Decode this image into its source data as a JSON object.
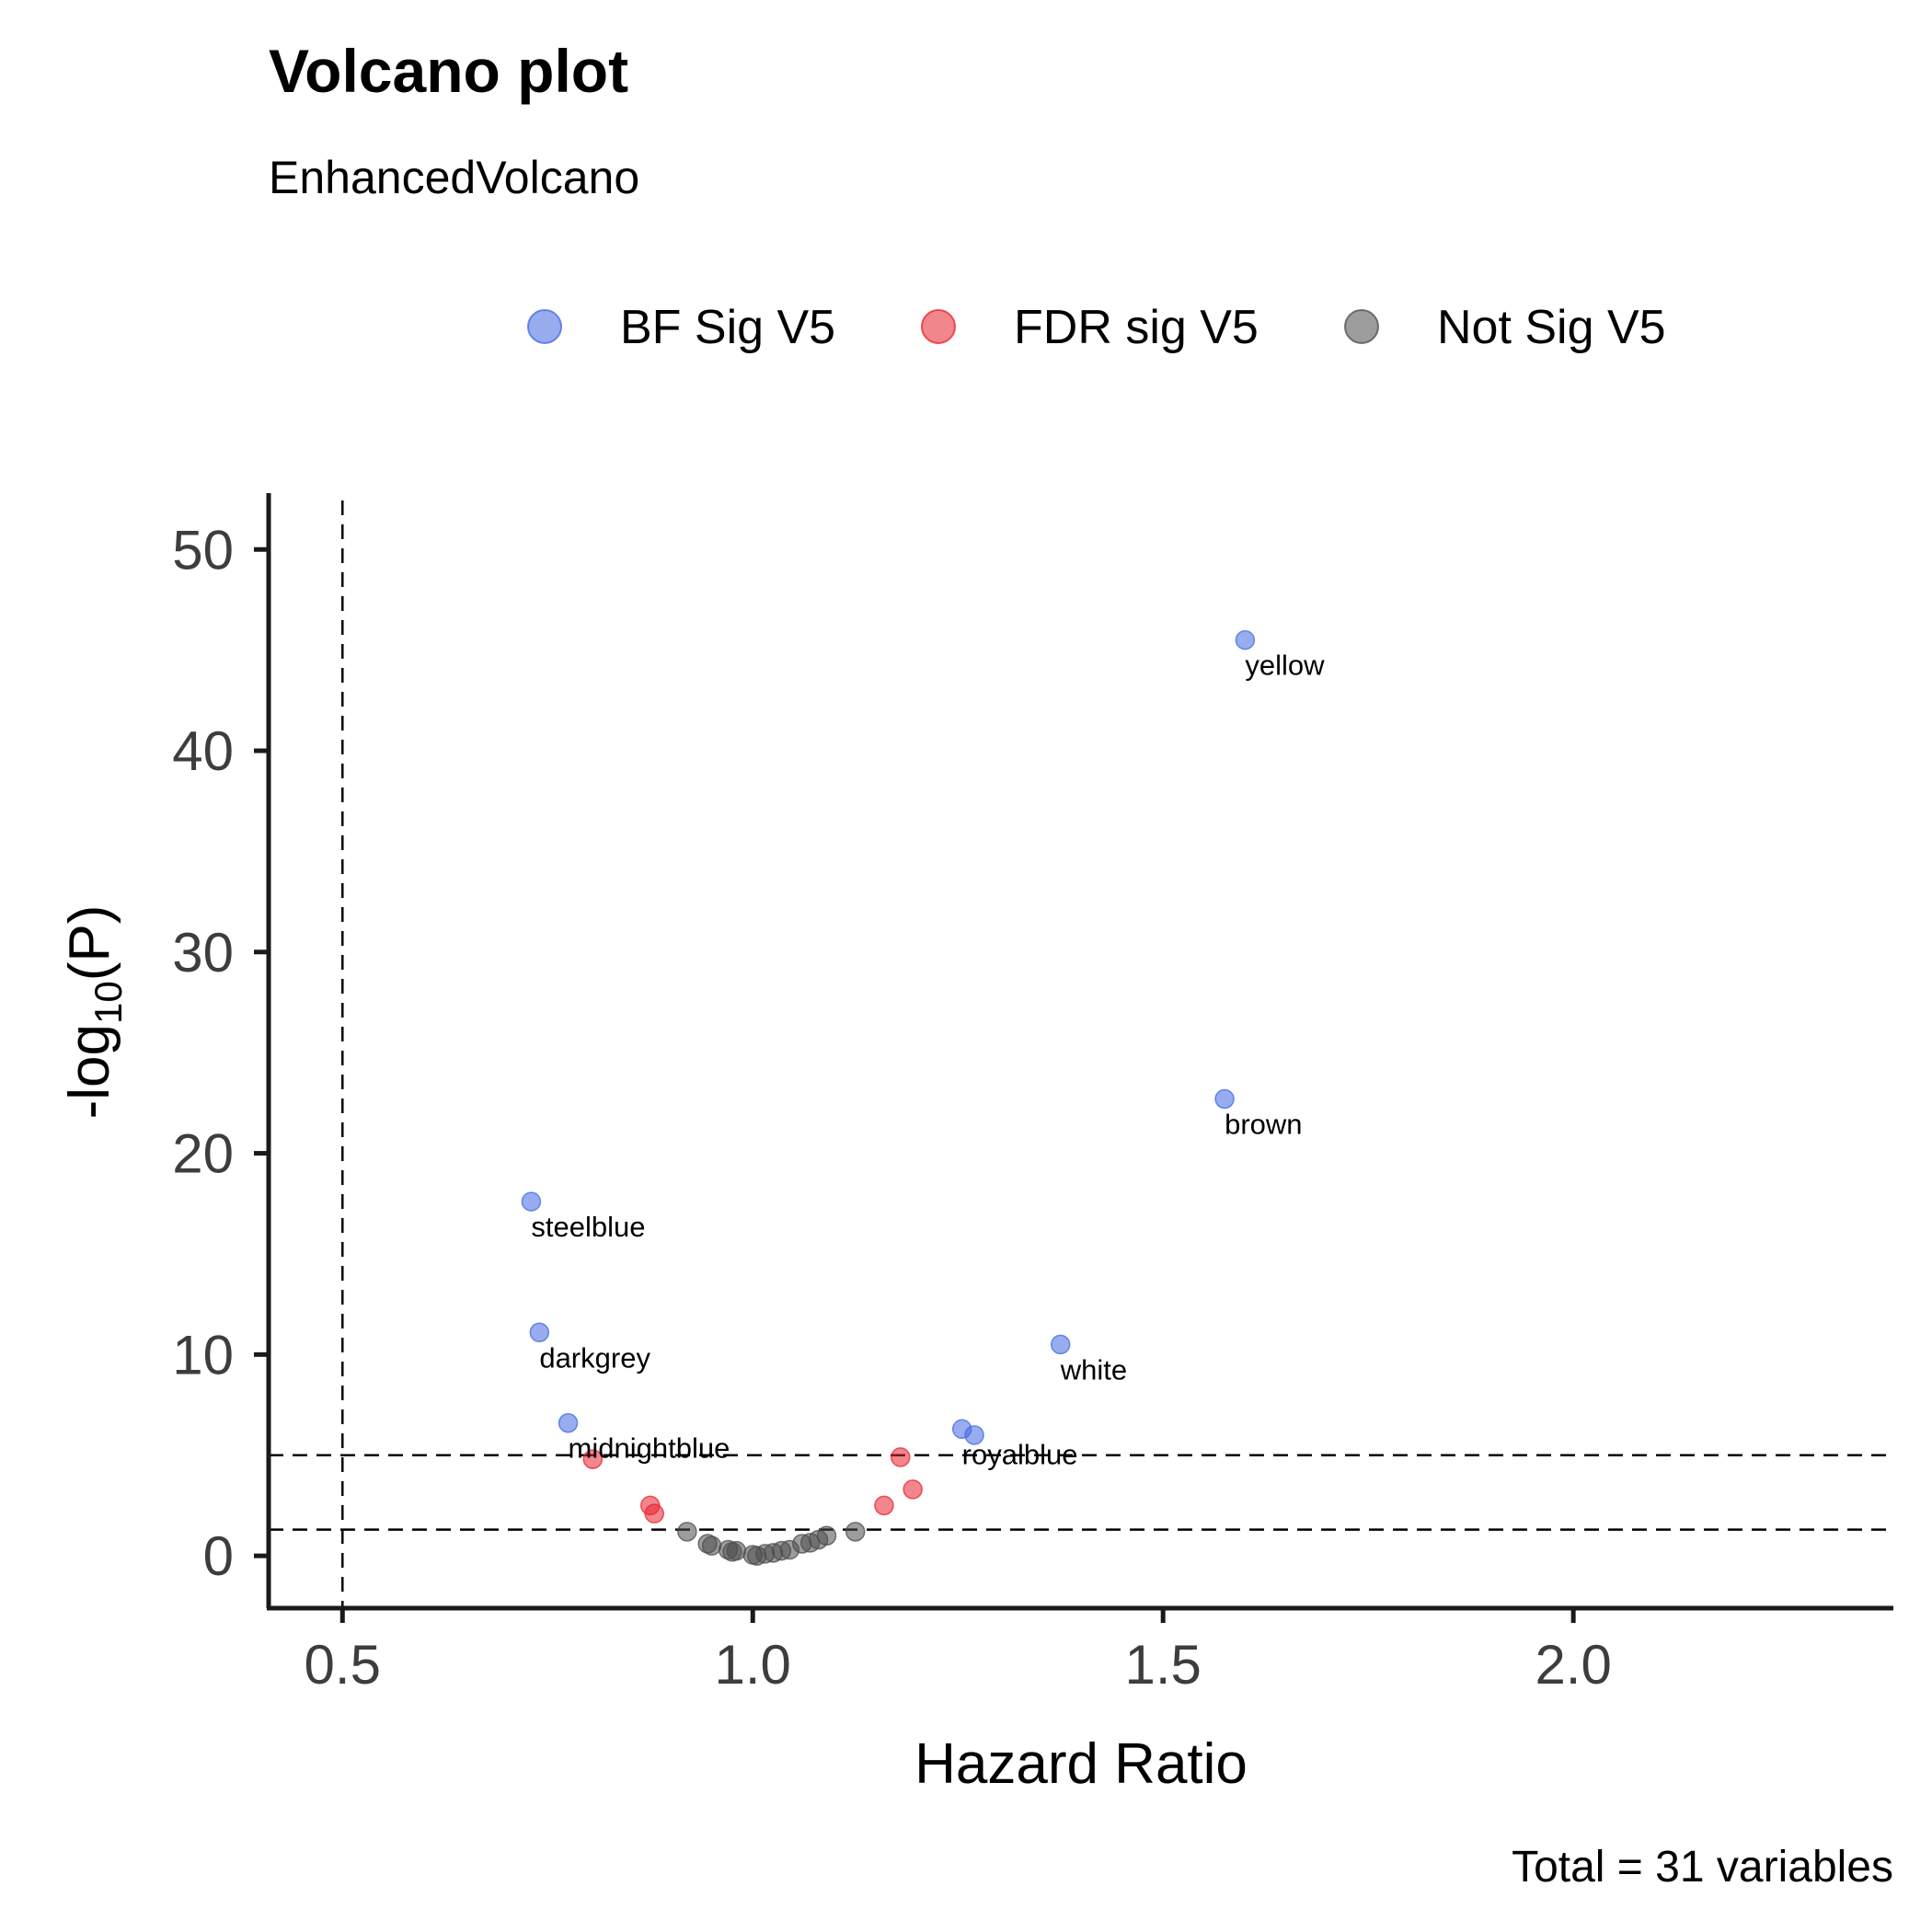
{
  "chart_data": {
    "type": "scatter",
    "title": "Volcano plot",
    "subtitle": "EnhancedVolcano",
    "xlabel": "Hazard Ratio",
    "ylabel_main": "-log",
    "ylabel_sub": "10",
    "ylabel_end": "(P)",
    "caption": "Total = 31 variables",
    "xlim": [
      0.41,
      2.39
    ],
    "ylim": [
      -2.6,
      52.8
    ],
    "xticks": [
      "0.5",
      "1.0",
      "1.5",
      "2.0"
    ],
    "yticks": [
      "0",
      "10",
      "20",
      "30",
      "40",
      "50"
    ],
    "grid": false,
    "legend_position": "top",
    "cutoff_lines": {
      "x": 0.5,
      "y": [
        5.0,
        1.3
      ]
    },
    "colors": {
      "BF Sig V5": "#4169E1",
      "FDR sig V5": "#E8232F",
      "Not Sig V5": "#4D4D4D"
    },
    "series": [
      {
        "name": "BF Sig V5",
        "points": [
          {
            "x": 1.6,
            "y": 45.5,
            "label": "yellow"
          },
          {
            "x": 1.575,
            "y": 22.7,
            "label": "brown"
          },
          {
            "x": 0.73,
            "y": 17.6,
            "label": "steelblue"
          },
          {
            "x": 0.74,
            "y": 11.1,
            "label": "darkgrey"
          },
          {
            "x": 1.375,
            "y": 10.5,
            "label": "white"
          },
          {
            "x": 0.775,
            "y": 6.6,
            "label": "midnightblue"
          },
          {
            "x": 1.255,
            "y": 6.3,
            "label": "royalblue"
          },
          {
            "x": 1.27,
            "y": 6.0,
            "label": ""
          }
        ]
      },
      {
        "name": "FDR sig V5",
        "points": [
          {
            "x": 0.805,
            "y": 4.8
          },
          {
            "x": 1.18,
            "y": 4.9
          },
          {
            "x": 0.875,
            "y": 2.5
          },
          {
            "x": 0.88,
            "y": 2.1
          },
          {
            "x": 1.16,
            "y": 2.5
          },
          {
            "x": 1.195,
            "y": 3.3
          }
        ]
      },
      {
        "name": "Not Sig V5",
        "points": [
          {
            "x": 0.92,
            "y": 1.2
          },
          {
            "x": 0.945,
            "y": 0.6
          },
          {
            "x": 0.95,
            "y": 0.5
          },
          {
            "x": 0.97,
            "y": 0.3
          },
          {
            "x": 0.98,
            "y": 0.25
          },
          {
            "x": 1.0,
            "y": 0.05
          },
          {
            "x": 1.005,
            "y": 0.0
          },
          {
            "x": 1.015,
            "y": 0.1
          },
          {
            "x": 1.025,
            "y": 0.15
          },
          {
            "x": 1.035,
            "y": 0.25
          },
          {
            "x": 1.06,
            "y": 0.6
          },
          {
            "x": 1.07,
            "y": 0.65
          },
          {
            "x": 1.08,
            "y": 0.8
          },
          {
            "x": 1.09,
            "y": 1.0
          },
          {
            "x": 1.125,
            "y": 1.2
          },
          {
            "x": 0.975,
            "y": 0.2
          },
          {
            "x": 1.045,
            "y": 0.3
          }
        ]
      }
    ]
  }
}
